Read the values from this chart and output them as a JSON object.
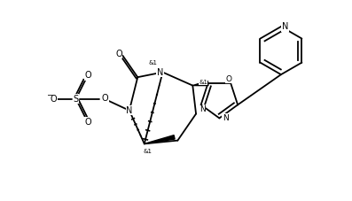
{
  "background_color": "#ffffff",
  "figsize": [
    3.97,
    2.27
  ],
  "dpi": 100,
  "line_color": "#000000",
  "line_width": 1.3,
  "font_size": 6.5,
  "xlim": [
    -1.0,
    9.5
  ],
  "ylim": [
    -0.5,
    5.5
  ]
}
